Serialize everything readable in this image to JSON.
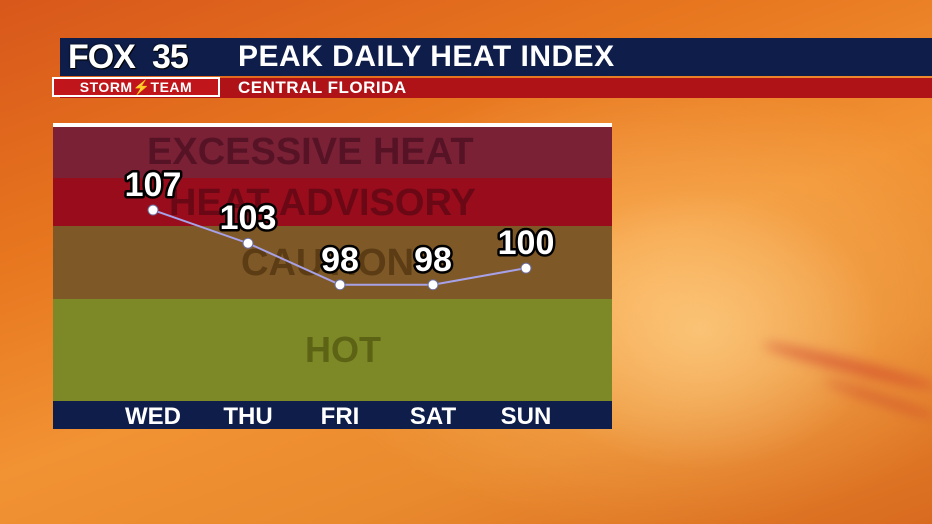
{
  "header": {
    "brand_name": "FOX",
    "brand_number": "35",
    "team_label": "STORM⚡TEAM",
    "title": "PEAK DAILY HEAT INDEX",
    "subtitle": "CENTRAL FLORIDA"
  },
  "colors": {
    "navy": "#0e1d4a",
    "red": "#b01317",
    "excessive_heat": "#7a2136",
    "heat_advisory": "#980c1c",
    "caution": "#7e5826",
    "hot": "#7d8826",
    "line": "#a7a1e8"
  },
  "chart_data": {
    "type": "line",
    "title": "PEAK DAILY HEAT INDEX",
    "subtitle": "CENTRAL FLORIDA",
    "categories": [
      "WED",
      "THU",
      "FRI",
      "SAT",
      "SUN"
    ],
    "values": [
      107,
      103,
      98,
      98,
      100
    ],
    "value_labels": [
      "107",
      "103",
      "98",
      "98",
      "100"
    ],
    "zones": [
      {
        "label": "EXCESSIVE HEAT",
        "color": "#7a2136"
      },
      {
        "label": "HEAT ADVISORY",
        "color": "#980c1c"
      },
      {
        "label": "CAUTION",
        "color": "#7e5826"
      },
      {
        "label": "HOT",
        "color": "#7d8826"
      }
    ],
    "ylim": [
      84,
      117
    ],
    "grid": false
  }
}
